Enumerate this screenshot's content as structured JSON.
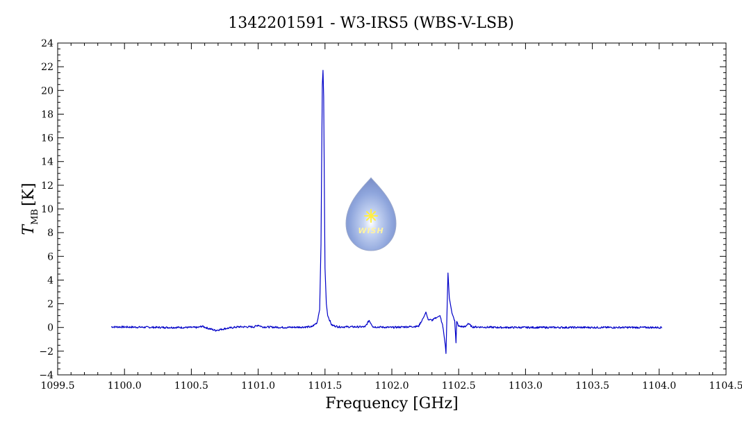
{
  "chart_data": {
    "type": "line",
    "title": "1342201591 - W3-IRS5 (WBS-V-LSB)",
    "xlabel": "Frequency [GHz]",
    "ylabel_main": "T",
    "ylabel_sub": "MB",
    "ylabel_unit": "[K]",
    "xlim": [
      1099.5,
      1104.5
    ],
    "ylim": [
      -4,
      24
    ],
    "x_ticks": [
      "1099.5",
      "1100.0",
      "1100.5",
      "1101.0",
      "1101.5",
      "1102.0",
      "1102.5",
      "1103.0",
      "1103.5",
      "1104.0",
      "1104.5"
    ],
    "y_ticks": [
      "−4",
      "−2",
      "0",
      "2",
      "4",
      "6",
      "8",
      "10",
      "12",
      "14",
      "16",
      "18",
      "20",
      "22",
      "24"
    ],
    "grid": false,
    "line_color": "#0000c8",
    "series": [
      {
        "x": [
          1099.9,
          1100.3,
          1100.55,
          1100.58,
          1100.62,
          1100.68,
          1100.75,
          1100.85,
          1100.97,
          1101.0,
          1101.03,
          1101.2,
          1101.4,
          1101.44,
          1101.46,
          1101.47,
          1101.475,
          1101.48,
          1101.485,
          1101.49,
          1101.495,
          1101.5,
          1101.51,
          1101.52,
          1101.55,
          1101.6,
          1101.8,
          1101.83,
          1101.86,
          1102.0,
          1102.2,
          1102.24,
          1102.255,
          1102.27,
          1102.3,
          1102.36,
          1102.38,
          1102.4,
          1102.405,
          1102.42,
          1102.43,
          1102.45,
          1102.47,
          1102.48,
          1102.485,
          1102.5,
          1102.55,
          1102.57,
          1102.6,
          1102.8,
          1103.2,
          1103.6,
          1104.02
        ],
        "y": [
          0.05,
          0.0,
          0.0,
          0.1,
          -0.05,
          -0.25,
          -0.1,
          0.05,
          0.05,
          0.2,
          0.05,
          0.0,
          0.05,
          0.4,
          1.5,
          7.0,
          14.0,
          20.5,
          21.7,
          19.5,
          12.0,
          5.0,
          2.0,
          1.0,
          0.2,
          0.05,
          0.05,
          0.6,
          0.05,
          0.0,
          0.1,
          0.9,
          1.3,
          0.7,
          0.6,
          1.0,
          0.2,
          -1.5,
          -2.2,
          4.6,
          2.5,
          1.2,
          0.6,
          -1.3,
          0.5,
          0.1,
          0.05,
          0.35,
          0.05,
          0.0,
          0.0,
          0.0,
          0.0
        ]
      }
    ]
  },
  "logo": {
    "text": "WISH"
  }
}
